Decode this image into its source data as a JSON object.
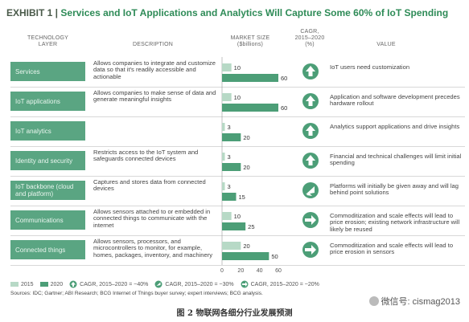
{
  "title": {
    "exhibit": "EXHIBIT 1 |",
    "text": "Services and IoT Applications and Analytics Will Capture Some 60% of IoT Spending"
  },
  "headers": {
    "layer_line1": "TECHNOLOGY",
    "layer_line2": "LAYER",
    "description": "DESCRIPTION",
    "market_line1": "MARKET SIZE",
    "market_line2": "($billions)",
    "cagr_line1": "CAGR,",
    "cagr_line2": "2015–2020",
    "cagr_line3": "(%)",
    "value": "VALUE"
  },
  "rows": [
    {
      "layer": "Services",
      "description": "Allows companies to integrate and customize data so that it's readily accessible and actionable",
      "value": "IoT users need customization",
      "cagr_level": "high"
    },
    {
      "layer": "IoT applications",
      "description": "Allows companies to make sense of data and generate meaningful insights",
      "value": "Application and software development precedes hardware rollout",
      "cagr_level": "high"
    },
    {
      "layer": "IoT analytics",
      "description": "",
      "value": "Analytics support applications and drive insights",
      "cagr_level": "high"
    },
    {
      "layer": "Identity and security",
      "description": "Restricts access to the IoT system and safeguards connected devices",
      "value": "Financial and technical challenges will limit initial spending",
      "cagr_level": "high"
    },
    {
      "layer": "IoT backbone (cloud and platform)",
      "description": "Captures and stores data from connected devices",
      "value": "Platforms will initially be given away and will lag behind point solutions",
      "cagr_level": "medium"
    },
    {
      "layer": "Communications",
      "description": "Allows sensors attached to or embedded in connected things to communicate with the internet",
      "value": "Commoditization and scale effects will lead to price erosion; existing network infrastructure will likely be reused",
      "cagr_level": "low"
    },
    {
      "layer": "Connected things",
      "description": "Allows sensors, processors, and microcontrollers to monitor, for example, homes, packages, inventory, and machinery",
      "value": "Commoditization and scale effects will lead to price erosion in sensors",
      "cagr_level": "low"
    }
  ],
  "chart_data": {
    "type": "bar",
    "title": "Services and IoT Applications and Analytics Will Capture Some 60% of IoT Spending",
    "ylabel": "MARKET SIZE ($billions)",
    "categories": [
      "Services",
      "IoT applications",
      "IoT analytics",
      "Identity and security",
      "IoT backbone (cloud and platform)",
      "Communications",
      "Connected things"
    ],
    "series": [
      {
        "name": "2015",
        "values": [
          10,
          10,
          3,
          3,
          3,
          10,
          20
        ],
        "color": "#b7d9c6"
      },
      {
        "name": "2020",
        "values": [
          60,
          60,
          20,
          20,
          15,
          25,
          50
        ],
        "color": "#4c9e77"
      }
    ],
    "xlim": [
      0,
      60
    ],
    "ticks": [
      "0",
      "20",
      "40",
      "60"
    ],
    "legend": "bottom"
  },
  "legend": {
    "s2015": "2015",
    "s2020": "2020",
    "high": "CAGR, 2015–2020 = ~40%",
    "medium": "CAGR, 2015–2020 = ~30%",
    "low": "CAGR, 2015–2020 = ~20%"
  },
  "sources": "Sources: IDC; Gartner; ABI Research; BCG Internet of Things buyer survey; expert interviews; BCG analysis.",
  "caption": "图 2 物联网各细分行业发展预测",
  "watermark": "微信号: cismag2013",
  "colors": {
    "accent": "#5aa582",
    "dark_bar": "#4c9e77",
    "light_bar": "#b7d9c6",
    "title_green": "#2e8b57"
  }
}
